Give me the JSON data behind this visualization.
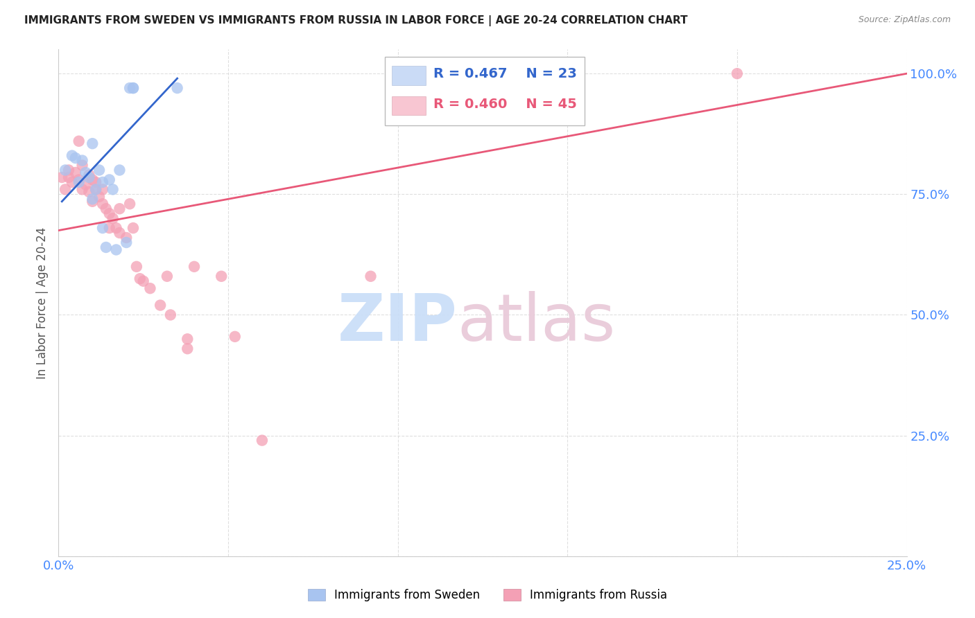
{
  "title": "IMMIGRANTS FROM SWEDEN VS IMMIGRANTS FROM RUSSIA IN LABOR FORCE | AGE 20-24 CORRELATION CHART",
  "source": "Source: ZipAtlas.com",
  "ylabel": "In Labor Force | Age 20-24",
  "xlim": [
    0.0,
    0.25
  ],
  "ylim": [
    0.0,
    1.05
  ],
  "xtick_positions": [
    0.0,
    0.05,
    0.1,
    0.15,
    0.2,
    0.25
  ],
  "xtick_labels": [
    "0.0%",
    "",
    "",
    "",
    "",
    "25.0%"
  ],
  "ytick_positions": [
    0.0,
    0.25,
    0.5,
    0.75,
    1.0
  ],
  "ytick_labels": [
    "",
    "25.0%",
    "50.0%",
    "75.0%",
    "100.0%"
  ],
  "sweden_color": "#a8c4f0",
  "russia_color": "#f4a0b5",
  "sweden_line_color": "#3366cc",
  "russia_line_color": "#e85878",
  "sweden_R": 0.467,
  "sweden_N": 23,
  "russia_R": 0.46,
  "russia_N": 45,
  "legend_label_sweden": "Immigrants from Sweden",
  "legend_label_russia": "Immigrants from Russia",
  "watermark_zip": "ZIP",
  "watermark_atlas": "atlas",
  "background_color": "#ffffff",
  "grid_color": "#d8d8d8",
  "axis_color": "#cccccc",
  "sweden_line_x": [
    0.001,
    0.035
  ],
  "sweden_line_y": [
    0.735,
    0.99
  ],
  "russia_line_x": [
    0.0,
    0.25
  ],
  "russia_line_y": [
    0.675,
    1.0
  ],
  "sweden_points_x": [
    0.002,
    0.004,
    0.005,
    0.006,
    0.007,
    0.008,
    0.009,
    0.01,
    0.01,
    0.011,
    0.012,
    0.013,
    0.013,
    0.014,
    0.015,
    0.016,
    0.017,
    0.018,
    0.02,
    0.021,
    0.022,
    0.022,
    0.035
  ],
  "sweden_points_y": [
    0.8,
    0.83,
    0.825,
    0.775,
    0.82,
    0.795,
    0.785,
    0.74,
    0.855,
    0.76,
    0.8,
    0.68,
    0.775,
    0.64,
    0.78,
    0.76,
    0.635,
    0.8,
    0.65,
    0.97,
    0.97,
    0.97,
    0.97
  ],
  "russia_points_x": [
    0.001,
    0.002,
    0.003,
    0.003,
    0.004,
    0.005,
    0.006,
    0.006,
    0.007,
    0.007,
    0.008,
    0.009,
    0.009,
    0.01,
    0.01,
    0.011,
    0.011,
    0.012,
    0.013,
    0.013,
    0.014,
    0.015,
    0.015,
    0.016,
    0.017,
    0.018,
    0.018,
    0.02,
    0.021,
    0.022,
    0.023,
    0.024,
    0.025,
    0.027,
    0.03,
    0.032,
    0.033,
    0.038,
    0.038,
    0.04,
    0.048,
    0.052,
    0.06,
    0.092,
    0.2
  ],
  "russia_points_y": [
    0.785,
    0.76,
    0.785,
    0.8,
    0.775,
    0.795,
    0.78,
    0.86,
    0.76,
    0.81,
    0.77,
    0.79,
    0.755,
    0.78,
    0.735,
    0.775,
    0.76,
    0.745,
    0.76,
    0.73,
    0.72,
    0.68,
    0.71,
    0.7,
    0.68,
    0.67,
    0.72,
    0.66,
    0.73,
    0.68,
    0.6,
    0.575,
    0.57,
    0.555,
    0.52,
    0.58,
    0.5,
    0.45,
    0.43,
    0.6,
    0.58,
    0.455,
    0.24,
    0.58,
    1.0
  ]
}
